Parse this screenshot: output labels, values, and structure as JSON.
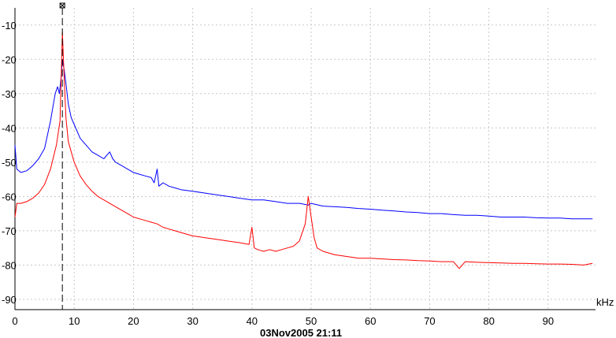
{
  "chart_data": {
    "type": "line",
    "xlabel": "kHz",
    "ylabel": "",
    "xlim": [
      0,
      98
    ],
    "ylim": [
      -93,
      -5
    ],
    "x_ticks": [
      0,
      10,
      20,
      30,
      40,
      50,
      60,
      70,
      80,
      90
    ],
    "y_ticks": [
      -10,
      -20,
      -30,
      -40,
      -50,
      -60,
      -70,
      -80,
      -90
    ],
    "grid": true,
    "cursor_x": 8,
    "timestamp": "03Nov2005  21:11",
    "series": [
      {
        "color": "#0000ff",
        "points": [
          [
            0,
            -45
          ],
          [
            0.3,
            -52
          ],
          [
            1,
            -53
          ],
          [
            2,
            -52.5
          ],
          [
            3,
            -51
          ],
          [
            4,
            -49
          ],
          [
            5,
            -46
          ],
          [
            6,
            -38
          ],
          [
            6.8,
            -30
          ],
          [
            7.2,
            -28
          ],
          [
            7.5,
            -30
          ],
          [
            7.8,
            -25
          ],
          [
            8,
            -20
          ],
          [
            8.3,
            -23
          ],
          [
            8.6,
            -27
          ],
          [
            9,
            -33
          ],
          [
            9.5,
            -37
          ],
          [
            10,
            -39
          ],
          [
            11,
            -43
          ],
          [
            12,
            -45
          ],
          [
            13,
            -47
          ],
          [
            14,
            -48
          ],
          [
            15,
            -49
          ],
          [
            16,
            -47
          ],
          [
            16.5,
            -49
          ],
          [
            17,
            -50
          ],
          [
            18,
            -51
          ],
          [
            19,
            -52
          ],
          [
            20,
            -53
          ],
          [
            21,
            -53.5
          ],
          [
            22,
            -54
          ],
          [
            23,
            -54.5
          ],
          [
            23.5,
            -56
          ],
          [
            24,
            -52
          ],
          [
            24.3,
            -57
          ],
          [
            25,
            -56
          ],
          [
            26,
            -57
          ],
          [
            27,
            -57.5
          ],
          [
            28,
            -58
          ],
          [
            30,
            -58.5
          ],
          [
            32,
            -59
          ],
          [
            34,
            -59.5
          ],
          [
            36,
            -60
          ],
          [
            38,
            -60.5
          ],
          [
            40,
            -61
          ],
          [
            42,
            -61
          ],
          [
            44,
            -61.5
          ],
          [
            46,
            -62
          ],
          [
            48,
            -62
          ],
          [
            49.5,
            -62.5
          ],
          [
            50,
            -62
          ],
          [
            52,
            -62.8
          ],
          [
            54,
            -63
          ],
          [
            56,
            -63.2
          ],
          [
            58,
            -63.5
          ],
          [
            60,
            -63.7
          ],
          [
            62,
            -64
          ],
          [
            64,
            -64.2
          ],
          [
            66,
            -64.5
          ],
          [
            68,
            -64.7
          ],
          [
            70,
            -65
          ],
          [
            72,
            -65
          ],
          [
            74,
            -65.3
          ],
          [
            76,
            -65.5
          ],
          [
            78,
            -65.5
          ],
          [
            80,
            -65.7
          ],
          [
            82,
            -66
          ],
          [
            84,
            -66
          ],
          [
            86,
            -66
          ],
          [
            88,
            -66.2
          ],
          [
            90,
            -66.3
          ],
          [
            92,
            -66.3
          ],
          [
            94,
            -66.5
          ],
          [
            96,
            -66.5
          ],
          [
            97.5,
            -66.5
          ]
        ]
      },
      {
        "color": "#ff0000",
        "points": [
          [
            0,
            -66
          ],
          [
            0.3,
            -62
          ],
          [
            1,
            -62
          ],
          [
            2,
            -61.5
          ],
          [
            3,
            -60.5
          ],
          [
            4,
            -59
          ],
          [
            5,
            -56.5
          ],
          [
            6,
            -52
          ],
          [
            7,
            -45
          ],
          [
            7.6,
            -38
          ],
          [
            8,
            -12
          ],
          [
            8.3,
            -25
          ],
          [
            8.6,
            -37
          ],
          [
            9,
            -44
          ],
          [
            10,
            -50
          ],
          [
            11,
            -54
          ],
          [
            12,
            -56.5
          ],
          [
            13,
            -58.5
          ],
          [
            14,
            -60
          ],
          [
            15,
            -61
          ],
          [
            16,
            -62
          ],
          [
            17,
            -63
          ],
          [
            18,
            -64
          ],
          [
            19,
            -65
          ],
          [
            20,
            -66
          ],
          [
            21,
            -66.5
          ],
          [
            22,
            -67
          ],
          [
            23,
            -67.5
          ],
          [
            24,
            -68
          ],
          [
            25,
            -69
          ],
          [
            26,
            -69.5
          ],
          [
            27,
            -70
          ],
          [
            28,
            -70.5
          ],
          [
            30,
            -71.5
          ],
          [
            32,
            -72
          ],
          [
            34,
            -72.5
          ],
          [
            36,
            -73
          ],
          [
            38,
            -73.5
          ],
          [
            39.5,
            -74
          ],
          [
            40,
            -69
          ],
          [
            40.4,
            -75
          ],
          [
            41,
            -75.5
          ],
          [
            42,
            -76
          ],
          [
            43,
            -75.5
          ],
          [
            44,
            -76
          ],
          [
            45,
            -75.5
          ],
          [
            46,
            -75
          ],
          [
            47,
            -74.5
          ],
          [
            48,
            -73
          ],
          [
            49,
            -68
          ],
          [
            49.5,
            -60
          ],
          [
            50,
            -66
          ],
          [
            50.5,
            -72
          ],
          [
            51,
            -75
          ],
          [
            52,
            -76
          ],
          [
            54,
            -77
          ],
          [
            56,
            -77.5
          ],
          [
            58,
            -78
          ],
          [
            60,
            -78
          ],
          [
            62,
            -78.2
          ],
          [
            64,
            -78.4
          ],
          [
            66,
            -78.5
          ],
          [
            68,
            -78.7
          ],
          [
            70,
            -78.8
          ],
          [
            72,
            -79
          ],
          [
            74,
            -79
          ],
          [
            75,
            -81
          ],
          [
            76,
            -79
          ],
          [
            78,
            -79.2
          ],
          [
            80,
            -79.3
          ],
          [
            82,
            -79.4
          ],
          [
            84,
            -79.5
          ],
          [
            86,
            -79.5
          ],
          [
            88,
            -79.6
          ],
          [
            90,
            -79.7
          ],
          [
            92,
            -79.7
          ],
          [
            94,
            -79.8
          ],
          [
            96,
            -80
          ],
          [
            97.5,
            -79.5
          ]
        ]
      }
    ]
  }
}
